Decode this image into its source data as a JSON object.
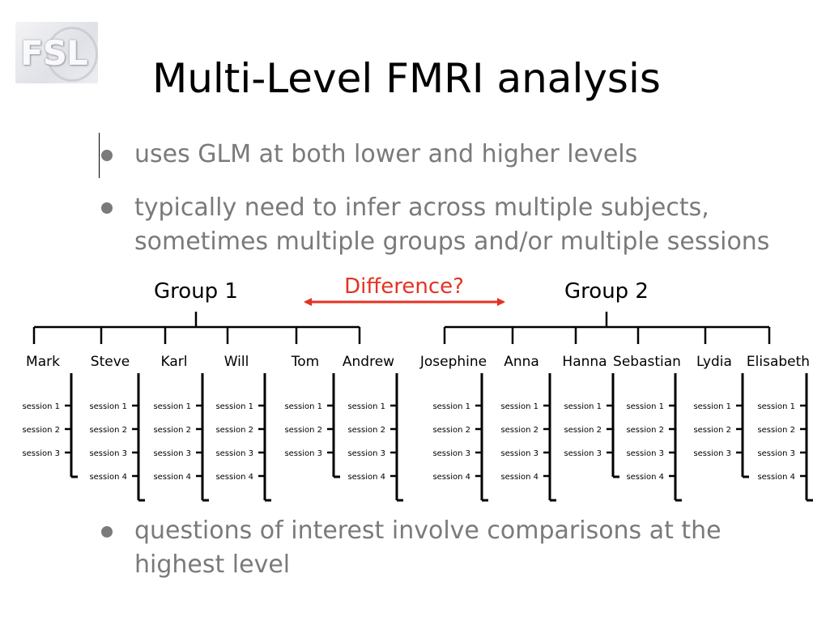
{
  "logo": {
    "text": "FSL"
  },
  "title": "Multi-Level FMRI analysis",
  "bullets": [
    {
      "lines": [
        "uses GLM at both lower and higher levels"
      ]
    },
    {
      "lines": [
        "typically need to infer across multiple subjects,",
        "sometimes multiple groups and/or multiple sessions"
      ]
    },
    {
      "lines": [
        "questions of interest involve comparisons at the",
        "highest level"
      ]
    }
  ],
  "diagram": {
    "difference_label": "Difference?",
    "difference_color": "#e53222",
    "groups": [
      {
        "name": "Group 1",
        "subjects": [
          {
            "name": "Mark",
            "sessions": [
              "session 1",
              "session 2",
              "session 3"
            ]
          },
          {
            "name": "Steve",
            "sessions": [
              "session 1",
              "session 2",
              "session 3",
              "session 4"
            ]
          },
          {
            "name": "Karl",
            "sessions": [
              "session 1",
              "session 2",
              "session 3",
              "session 4"
            ]
          },
          {
            "name": "Will",
            "sessions": [
              "session 1",
              "session 2",
              "session 3",
              "session 4"
            ]
          },
          {
            "name": "Tom",
            "sessions": [
              "session 1",
              "session 2",
              "session 3"
            ]
          },
          {
            "name": "Andrew",
            "sessions": [
              "session 1",
              "session 2",
              "session 3",
              "session 4"
            ]
          }
        ]
      },
      {
        "name": "Group 2",
        "subjects": [
          {
            "name": "Josephine",
            "sessions": [
              "session 1",
              "session 2",
              "session 3",
              "session 4"
            ]
          },
          {
            "name": "Anna",
            "sessions": [
              "session 1",
              "session 2",
              "session 3",
              "session 4"
            ]
          },
          {
            "name": "Hanna",
            "sessions": [
              "session 1",
              "session 2",
              "session 3"
            ]
          },
          {
            "name": "Sebastian",
            "sessions": [
              "session 1",
              "session 2",
              "session 3",
              "session 4"
            ]
          },
          {
            "name": "Lydia",
            "sessions": [
              "session 1",
              "session 2",
              "session 3"
            ]
          },
          {
            "name": "Elisabeth",
            "sessions": [
              "session 1",
              "session 2",
              "session 3",
              "session 4"
            ]
          }
        ]
      }
    ]
  }
}
